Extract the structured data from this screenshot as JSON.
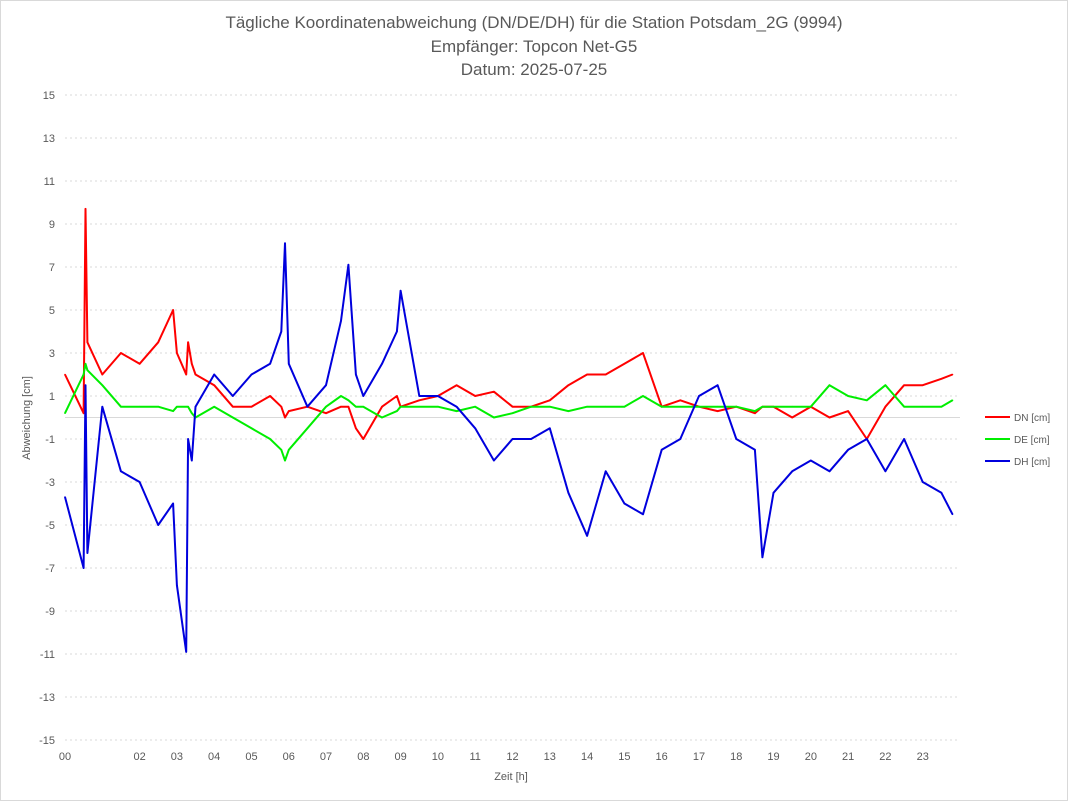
{
  "chart_data": {
    "type": "line",
    "title": "Tägliche Koordinatenabweichung (DN/DE/DH) für die Station Potsdam_2G (9994)",
    "subtitle": [
      "Empfänger: Topcon Net-G5",
      "Datum: 2025-07-25"
    ],
    "xlabel": "Zeit [h]",
    "ylabel": "Abweichung [cm]",
    "xlim": [
      0,
      24
    ],
    "ylim": [
      -15,
      15
    ],
    "x_ticks": [
      "00",
      "02",
      "03",
      "04",
      "05",
      "06",
      "07",
      "08",
      "09",
      "10",
      "11",
      "12",
      "13",
      "14",
      "15",
      "16",
      "17",
      "18",
      "19",
      "20",
      "21",
      "22",
      "23"
    ],
    "y_ticks": [
      "15",
      "13",
      "11",
      "9",
      "7",
      "5",
      "3",
      "1",
      "-1",
      "-3",
      "-5",
      "-7",
      "-9",
      "-11",
      "-13",
      "-15"
    ],
    "grid": "horizontal dotted",
    "legend": "right",
    "x": [
      0.0,
      0.5,
      0.55,
      0.6,
      1.0,
      1.5,
      2.0,
      2.5,
      2.9,
      3.0,
      3.25,
      3.3,
      3.4,
      3.5,
      4.0,
      4.5,
      5.0,
      5.5,
      5.8,
      5.9,
      6.0,
      6.5,
      7.0,
      7.4,
      7.6,
      7.8,
      8.0,
      8.5,
      8.9,
      9.0,
      9.5,
      10.0,
      10.5,
      11.0,
      11.5,
      12.0,
      12.5,
      13.0,
      13.5,
      14.0,
      14.5,
      15.0,
      15.5,
      16.0,
      16.5,
      17.0,
      17.5,
      18.0,
      18.5,
      18.7,
      19.0,
      19.5,
      20.0,
      20.5,
      21.0,
      21.5,
      22.0,
      22.5,
      23.0,
      23.5,
      23.8
    ],
    "series": [
      {
        "name": "DN [cm]",
        "color": "#ff0000",
        "values": [
          2.0,
          0.2,
          9.7,
          3.5,
          2.0,
          3.0,
          2.5,
          3.5,
          5.0,
          3.0,
          2.0,
          3.5,
          2.5,
          2.0,
          1.5,
          0.5,
          0.5,
          1.0,
          0.5,
          0.0,
          0.3,
          0.5,
          0.2,
          0.5,
          0.5,
          -0.5,
          -1.0,
          0.5,
          1.0,
          0.5,
          0.8,
          1.0,
          1.5,
          1.0,
          1.2,
          0.5,
          0.5,
          0.8,
          1.5,
          2.0,
          2.0,
          2.5,
          3.0,
          0.5,
          0.8,
          0.5,
          0.3,
          0.5,
          0.2,
          0.5,
          0.5,
          0.0,
          0.5,
          0.0,
          0.3,
          -1.0,
          0.5,
          1.5,
          1.5,
          1.8,
          2.0
        ]
      },
      {
        "name": "DE [cm]",
        "color": "#00ee00",
        "values": [
          0.2,
          2.0,
          2.5,
          2.2,
          1.5,
          0.5,
          0.5,
          0.5,
          0.3,
          0.5,
          0.5,
          0.5,
          0.2,
          0.0,
          0.5,
          0.0,
          -0.5,
          -1.0,
          -1.5,
          -2.0,
          -1.5,
          -0.5,
          0.5,
          1.0,
          0.8,
          0.5,
          0.5,
          0.0,
          0.3,
          0.5,
          0.5,
          0.5,
          0.3,
          0.5,
          0.0,
          0.2,
          0.5,
          0.5,
          0.3,
          0.5,
          0.5,
          0.5,
          1.0,
          0.5,
          0.5,
          0.5,
          0.5,
          0.5,
          0.3,
          0.5,
          0.5,
          0.5,
          0.5,
          1.5,
          1.0,
          0.8,
          1.5,
          0.5,
          0.5,
          0.5,
          0.8
        ]
      },
      {
        "name": "DH [cm]",
        "color": "#0000dd",
        "values": [
          -3.7,
          -7.0,
          1.5,
          -6.3,
          0.5,
          -2.5,
          -3.0,
          -5.0,
          -4.0,
          -7.8,
          -10.9,
          -1.0,
          -2.0,
          0.5,
          2.0,
          1.0,
          2.0,
          2.5,
          4.0,
          8.1,
          2.5,
          0.5,
          1.5,
          4.5,
          7.1,
          2.0,
          1.0,
          2.5,
          4.0,
          5.9,
          1.0,
          1.0,
          0.5,
          -0.5,
          -2.0,
          -1.0,
          -1.0,
          -0.5,
          -3.5,
          -5.5,
          -2.5,
          -4.0,
          -4.5,
          -1.5,
          -1.0,
          1.0,
          1.5,
          -1.0,
          -1.5,
          -6.5,
          -3.5,
          -2.5,
          -2.0,
          -2.5,
          -1.5,
          -1.0,
          -2.5,
          -1.0,
          -3.0,
          -3.5,
          -4.5
        ]
      }
    ]
  }
}
